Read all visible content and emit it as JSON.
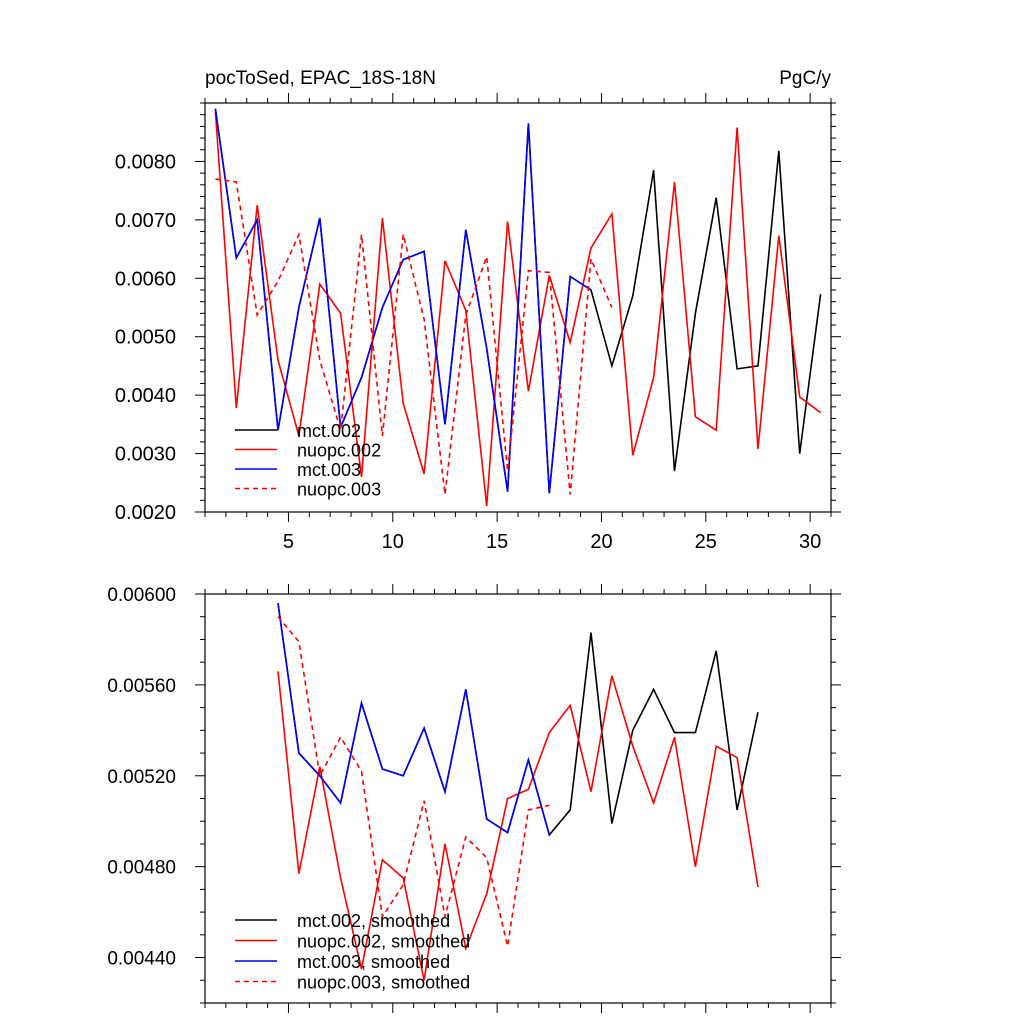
{
  "chart_data": [
    {
      "type": "line",
      "title": "pocToSed, EPAC_18S-18N",
      "title_right": "PgC/y",
      "xlim": [
        1,
        31
      ],
      "ylim": [
        0.002,
        0.009
      ],
      "xticks": [
        5,
        10,
        15,
        20,
        25,
        30
      ],
      "xtick_labels": [
        "5",
        "10",
        "15",
        "20",
        "25",
        "30"
      ],
      "yticks": [
        0.002,
        0.003,
        0.004,
        0.005,
        0.006,
        0.007,
        0.008
      ],
      "ytick_labels": [
        "0.0020",
        "0.0030",
        "0.0040",
        "0.0050",
        "0.0060",
        "0.0070",
        "0.0080"
      ],
      "legend_position": "bottom-left",
      "series": [
        {
          "name": "mct.002",
          "color": "#000000",
          "dash": "solid",
          "x": [
            1.5,
            2.5,
            3.5,
            4.5,
            5.5,
            6.5,
            7.5,
            8.5,
            9.5,
            10.5,
            11.5,
            12.5,
            13.5,
            14.5,
            15.5,
            16.5,
            17.5,
            18.5,
            19.5,
            20.5,
            21.5,
            22.5,
            23.5,
            24.5,
            25.5,
            26.5,
            27.5,
            28.5,
            29.5,
            30.5
          ],
          "y": [
            0.0089,
            0.00635,
            0.007,
            0.0034,
            0.0055,
            0.00703,
            0.00345,
            0.0043,
            0.0055,
            0.00632,
            0.00646,
            0.0035,
            0.00683,
            0.0048,
            0.00235,
            0.00865,
            0.00232,
            0.00603,
            0.0058,
            0.0045,
            0.0057,
            0.00785,
            0.0027,
            0.0054,
            0.00738,
            0.00445,
            0.0045,
            0.00818,
            0.003,
            0.00573
          ]
        },
        {
          "name": "nuopc.002",
          "color": "#ff0000",
          "dash": "solid",
          "x": [
            1.5,
            2.5,
            3.5,
            4.5,
            5.5,
            6.5,
            7.5,
            8.5,
            9.5,
            10.5,
            11.5,
            12.5,
            13.5,
            14.5,
            15.5,
            16.5,
            17.5,
            18.5,
            19.5,
            20.5,
            21.5,
            22.5,
            23.5,
            24.5,
            25.5,
            26.5,
            27.5,
            28.5,
            29.5,
            30.5
          ],
          "y": [
            0.00885,
            0.00378,
            0.00725,
            0.0046,
            0.0033,
            0.0059,
            0.0054,
            0.0026,
            0.00703,
            0.00386,
            0.00265,
            0.0063,
            0.00545,
            0.0021,
            0.00697,
            0.00407,
            0.00605,
            0.0049,
            0.00652,
            0.0071,
            0.00297,
            0.0043,
            0.00765,
            0.00363,
            0.0034,
            0.00858,
            0.00308,
            0.00673,
            0.00397,
            0.0037
          ]
        },
        {
          "name": "mct.003",
          "color": "#0000ff",
          "dash": "solid",
          "x": [
            1.5,
            2.5,
            3.5,
            4.5,
            5.5,
            6.5,
            7.5,
            8.5,
            9.5,
            10.5,
            11.5,
            12.5,
            13.5,
            14.5,
            15.5,
            16.5,
            17.5,
            18.5,
            19.5
          ],
          "y": [
            0.0089,
            0.00635,
            0.007,
            0.0034,
            0.0055,
            0.00703,
            0.00345,
            0.0043,
            0.0055,
            0.00632,
            0.00646,
            0.0035,
            0.00683,
            0.0048,
            0.00235,
            0.00865,
            0.00232,
            0.00603,
            0.0058
          ]
        },
        {
          "name": "nuopc.003",
          "color": "#ff0000",
          "dash": "dashed",
          "x": [
            1.5,
            2.5,
            3.5,
            4.5,
            5.5,
            6.5,
            7.5,
            8.5,
            9.5,
            10.5,
            11.5,
            12.5,
            13.5,
            14.5,
            15.5,
            16.5,
            17.5,
            18.5,
            19.5,
            20.5
          ],
          "y": [
            0.0077,
            0.00765,
            0.00537,
            0.00595,
            0.00675,
            0.0046,
            0.0034,
            0.00675,
            0.0033,
            0.00675,
            0.0053,
            0.0023,
            0.00537,
            0.00637,
            0.0027,
            0.00613,
            0.0061,
            0.0023,
            0.00633,
            0.0055
          ]
        }
      ]
    },
    {
      "type": "line",
      "xlim": [
        1,
        31
      ],
      "ylim": [
        0.0042,
        0.006
      ],
      "xticks": [
        5,
        10,
        15,
        20,
        25,
        30
      ],
      "xtick_labels": [],
      "yticks": [
        0.0044,
        0.0048,
        0.0052,
        0.0056,
        0.006
      ],
      "ytick_labels": [
        "0.00440",
        "0.00480",
        "0.00520",
        "0.00560",
        "0.00600"
      ],
      "legend_position": "bottom-left",
      "series": [
        {
          "name": "mct.002, smoothed",
          "color": "#000000",
          "dash": "solid",
          "x": [
            4.5,
            5.5,
            6.5,
            7.5,
            8.5,
            9.5,
            10.5,
            11.5,
            12.5,
            13.5,
            14.5,
            15.5,
            16.5,
            17.5,
            18.5,
            19.5,
            20.5,
            21.5,
            22.5,
            23.5,
            24.5,
            25.5,
            26.5,
            27.5
          ],
          "y": [
            0.00596,
            0.0053,
            0.0052,
            0.00508,
            0.00552,
            0.00523,
            0.0052,
            0.00541,
            0.00513,
            0.00558,
            0.00501,
            0.00495,
            0.00527,
            0.00494,
            0.00505,
            0.00583,
            0.00499,
            0.0054,
            0.00558,
            0.00539,
            0.00539,
            0.00575,
            0.00505,
            0.00548
          ]
        },
        {
          "name": "nuopc.002, smoothed",
          "color": "#ff0000",
          "dash": "solid",
          "x": [
            4.5,
            5.5,
            6.5,
            7.5,
            8.5,
            9.5,
            10.5,
            11.5,
            12.5,
            13.5,
            14.5,
            15.5,
            16.5,
            17.5,
            18.5,
            19.5,
            20.5,
            21.5,
            22.5,
            23.5,
            24.5,
            25.5,
            26.5,
            27.5
          ],
          "y": [
            0.00566,
            0.00477,
            0.00524,
            0.00475,
            0.00435,
            0.00483,
            0.00475,
            0.0043,
            0.0049,
            0.00444,
            0.00468,
            0.0051,
            0.00514,
            0.00539,
            0.00551,
            0.00513,
            0.00564,
            0.00533,
            0.00508,
            0.00537,
            0.0048,
            0.00533,
            0.00528,
            0.00471
          ]
        },
        {
          "name": "mct.003, smoothed",
          "color": "#0000ff",
          "dash": "solid",
          "x": [
            4.5,
            5.5,
            6.5,
            7.5,
            8.5,
            9.5,
            10.5,
            11.5,
            12.5,
            13.5,
            14.5,
            15.5,
            16.5,
            17.5
          ],
          "y": [
            0.00596,
            0.0053,
            0.0052,
            0.00508,
            0.00552,
            0.00523,
            0.0052,
            0.00541,
            0.00513,
            0.00558,
            0.00501,
            0.00495,
            0.00527,
            0.00494
          ]
        },
        {
          "name": "nuopc.003, smoothed",
          "color": "#ff0000",
          "dash": "dashed",
          "x": [
            4.5,
            5.5,
            6.5,
            7.5,
            8.5,
            9.5,
            10.5,
            11.5,
            12.5,
            13.5,
            14.5,
            15.5,
            16.5,
            17.5
          ],
          "y": [
            0.0059,
            0.00579,
            0.0052,
            0.00537,
            0.00522,
            0.00458,
            0.00472,
            0.00509,
            0.00458,
            0.00493,
            0.00484,
            0.00445,
            0.00505,
            0.00507
          ]
        }
      ]
    }
  ]
}
